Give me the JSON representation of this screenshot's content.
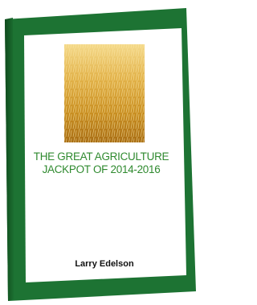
{
  "cover": {
    "title_lines": [
      "THE GREAT AGRICULTURE",
      "JACKPOT OF 2014-2016"
    ],
    "author": "Larry Edelson"
  }
}
